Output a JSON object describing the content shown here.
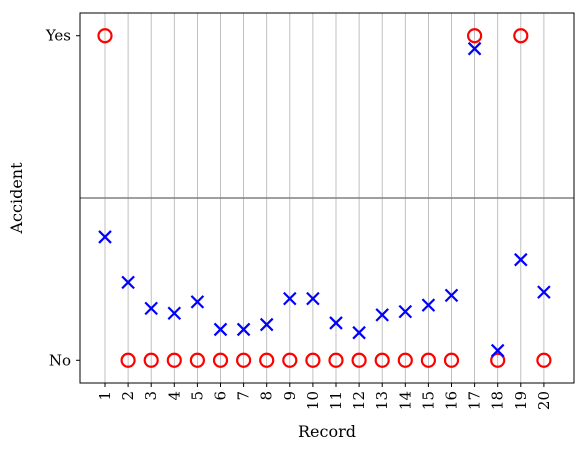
{
  "chart_data": {
    "type": "scatter",
    "title": "",
    "xlabel": "Record",
    "ylabel": "Accident",
    "categories": [
      "1",
      "2",
      "3",
      "4",
      "5",
      "6",
      "7",
      "8",
      "9",
      "10",
      "11",
      "12",
      "13",
      "14",
      "15",
      "16",
      "17",
      "18",
      "19",
      "20"
    ],
    "y_ticks": [
      {
        "label": "No",
        "value": 0
      },
      {
        "label": "Yes",
        "value": 1
      }
    ],
    "ylim": [
      -0.07,
      1.07
    ],
    "threshold": 0.5,
    "grid": "vertical",
    "series": [
      {
        "marker": "circle",
        "color": "#ff0000",
        "values": [
          1,
          0,
          0,
          0,
          0,
          0,
          0,
          0,
          0,
          0,
          0,
          0,
          0,
          0,
          0,
          0,
          1,
          0,
          1,
          0
        ]
      },
      {
        "marker": "x",
        "color": "#0000ff",
        "values": [
          0.38,
          0.24,
          0.16,
          0.145,
          0.18,
          0.095,
          0.095,
          0.11,
          0.19,
          0.19,
          0.115,
          0.085,
          0.14,
          0.15,
          0.17,
          0.2,
          0.96,
          0.03,
          0.31,
          0.21
        ]
      }
    ]
  }
}
